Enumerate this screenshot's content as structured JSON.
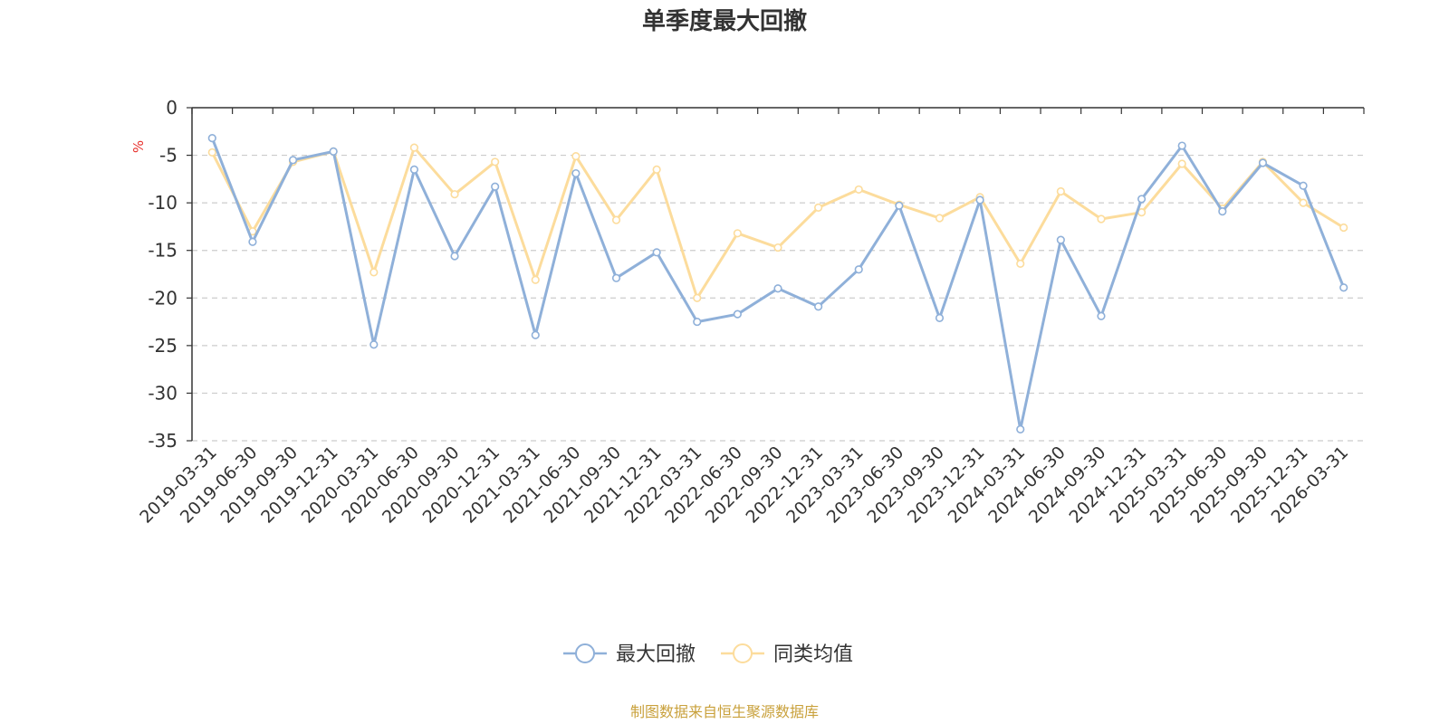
{
  "chart_data": {
    "type": "line",
    "title": "单季度最大回撤",
    "ylabel": "%",
    "ylim": [
      -35,
      0
    ],
    "yticks": [
      0,
      -5,
      -10,
      -15,
      -20,
      -25,
      -30,
      -35
    ],
    "grid": true,
    "legend_position": "bottom",
    "categories": [
      "2019-03-31",
      "2019-06-30",
      "2019-09-30",
      "2019-12-31",
      "2020-03-31",
      "2020-06-30",
      "2020-09-30",
      "2020-12-31",
      "2021-03-31",
      "2021-06-30",
      "2021-09-30",
      "2021-12-31",
      "2022-03-31",
      "2022-06-30",
      "2022-09-30",
      "2022-12-31",
      "2023-03-31",
      "2023-06-30",
      "2023-09-30",
      "2023-12-31",
      "2024-03-31",
      "2024-06-30",
      "2024-09-30",
      "2024-12-31",
      "2025-03-31",
      "2025-06-30",
      "2025-09-30",
      "2025-12-31",
      "2026-03-31"
    ],
    "series": [
      {
        "name": "最大回撤",
        "color": "#8fb0d9",
        "values": [
          -3.2,
          -14.1,
          -5.5,
          -4.6,
          -24.9,
          -6.5,
          -15.6,
          -8.3,
          -23.9,
          -6.9,
          -17.9,
          -15.2,
          -22.5,
          -21.7,
          -19.0,
          -20.9,
          -17.0,
          -10.3,
          -22.1,
          -9.7,
          -33.8,
          -13.9,
          -21.9,
          -9.6,
          -4.0,
          -10.9,
          -5.8,
          -8.2,
          -18.9
        ]
      },
      {
        "name": "同类均值",
        "color": "#fcdc9c",
        "values": [
          -4.7,
          -13.0,
          -5.7,
          -4.6,
          -17.3,
          -4.2,
          -9.1,
          -5.7,
          -18.1,
          -5.1,
          -11.8,
          -6.5,
          -20.0,
          -13.2,
          -14.7,
          -10.5,
          -8.6,
          -10.2,
          -11.6,
          -9.4,
          -16.4,
          -8.8,
          -11.7,
          -11.0,
          -5.9,
          -10.6,
          -5.7,
          -10.0,
          -12.6
        ]
      }
    ],
    "source": "制图数据来自恒生聚源数据库",
    "colors": {
      "axis": "#333333",
      "grid": "#cccccc",
      "unit": "#e8322e",
      "source": "#c9a13c"
    }
  }
}
